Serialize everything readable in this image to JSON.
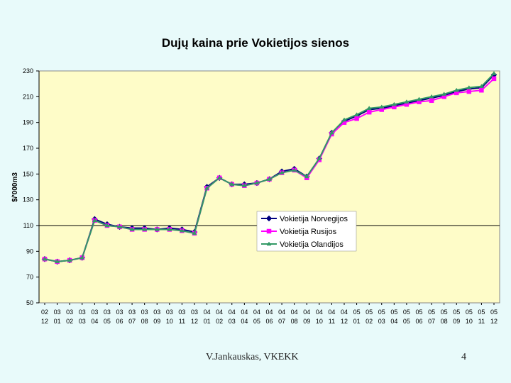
{
  "footer": {
    "author": "V.Jankauskas, VKEKK",
    "page": "4"
  },
  "colors": {
    "plot_bg": "#fefcc8",
    "norvegijos": "#000080",
    "rusijos": "#ff00ff",
    "olandijos": "#339966"
  },
  "chart_data": {
    "type": "line",
    "title": "Dujų kaina prie Vokietijos sienos",
    "ylabel": "$/'000m3",
    "xlabel": "",
    "ylim": [
      50,
      230
    ],
    "yticks": [
      50,
      70,
      90,
      110,
      130,
      150,
      170,
      190,
      210,
      230
    ],
    "reference_line": 110,
    "legend_position": "center-right",
    "categories": [
      [
        "02",
        "12"
      ],
      [
        "03",
        "01"
      ],
      [
        "03",
        "02"
      ],
      [
        "03",
        "03"
      ],
      [
        "03",
        "04"
      ],
      [
        "03",
        "05"
      ],
      [
        "03",
        "06"
      ],
      [
        "03",
        "07"
      ],
      [
        "03",
        "08"
      ],
      [
        "03",
        "09"
      ],
      [
        "03",
        "10"
      ],
      [
        "03",
        "11"
      ],
      [
        "03",
        "12"
      ],
      [
        "04",
        "01"
      ],
      [
        "04",
        "02"
      ],
      [
        "04",
        "03"
      ],
      [
        "04",
        "04"
      ],
      [
        "04",
        "05"
      ],
      [
        "04",
        "06"
      ],
      [
        "04",
        "07"
      ],
      [
        "04",
        "08"
      ],
      [
        "04",
        "09"
      ],
      [
        "04",
        "10"
      ],
      [
        "04",
        "11"
      ],
      [
        "04",
        "12"
      ],
      [
        "05",
        "01"
      ],
      [
        "05",
        "02"
      ],
      [
        "05",
        "03"
      ],
      [
        "05",
        "04"
      ],
      [
        "05",
        "05"
      ],
      [
        "05",
        "06"
      ],
      [
        "05",
        "07"
      ],
      [
        "05",
        "08"
      ],
      [
        "05",
        "09"
      ],
      [
        "05",
        "10"
      ],
      [
        "05",
        "11"
      ],
      [
        "05",
        "12"
      ]
    ],
    "series": [
      {
        "name": "Vokietija Norvegijos",
        "values": [
          84,
          82,
          83,
          85,
          115,
          111,
          109,
          108,
          108,
          107,
          108,
          107,
          105,
          140,
          147,
          142,
          142,
          143,
          146,
          152,
          154,
          148,
          162,
          182,
          191,
          195,
          200,
          201,
          203,
          205,
          207,
          209,
          211,
          214,
          216,
          217,
          227
        ]
      },
      {
        "name": "Vokietija Rusijos",
        "values": [
          84,
          82,
          83,
          85,
          114,
          110,
          109,
          107,
          107,
          107,
          107,
          106,
          104,
          139,
          147,
          142,
          141,
          143,
          146,
          151,
          153,
          147,
          161,
          181,
          190,
          193,
          198,
          200,
          202,
          204,
          206,
          207,
          210,
          213,
          214,
          215,
          224
        ]
      },
      {
        "name": "Vokietija Olandijos",
        "values": [
          84,
          82,
          83,
          85,
          114,
          110,
          109,
          107,
          107,
          107,
          107,
          106,
          104,
          139,
          147,
          142,
          141,
          143,
          146,
          151,
          153,
          148,
          162,
          182,
          192,
          196,
          201,
          202,
          204,
          206,
          208,
          210,
          212,
          215,
          217,
          218,
          228
        ]
      }
    ]
  }
}
